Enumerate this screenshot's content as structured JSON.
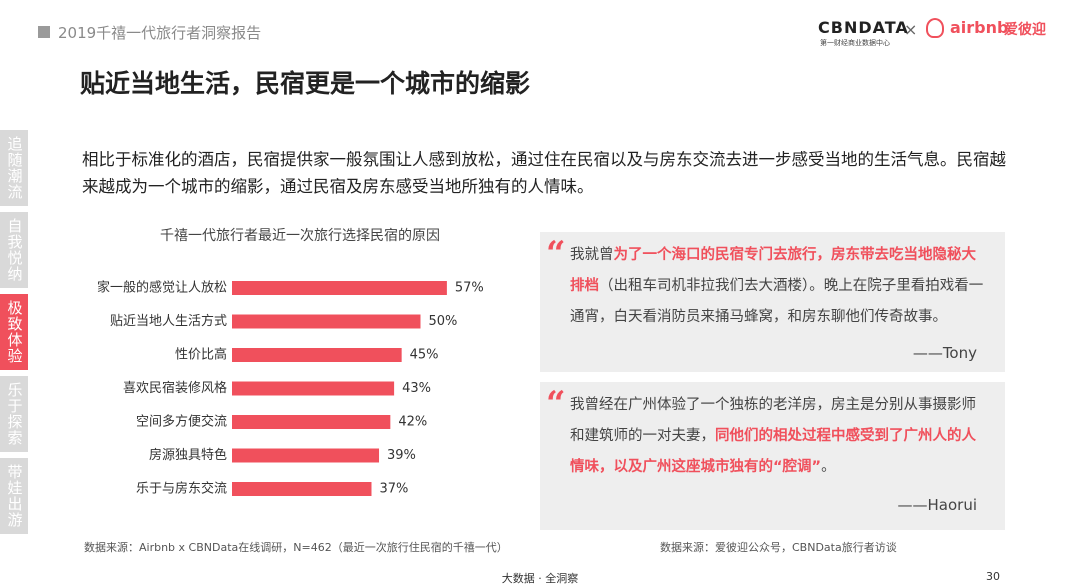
{
  "header": {
    "report_title": "2019千禧一代旅行者洞察报告",
    "logo_left": "CBNDATA",
    "logo_left_sub": "第一财经商业数据中心",
    "logo_cross": "×",
    "logo_right": "airbnb",
    "logo_right_cn": "爱彼迎"
  },
  "title": "贴近当地生活，民宿更是一个城市的缩影",
  "intro": "相比于标准化的酒店，民宿提供家一般氛围让人感到放松，通过住在民宿以及与房东交流去进一步感受当地的生活气息。民宿越来越成为一个城市的缩影，通过民宿及房东感受当地所独有的人情味。",
  "side_tabs": [
    {
      "label": "追随潮流",
      "active": false
    },
    {
      "label": "自我悦纳",
      "active": false
    },
    {
      "label": "极致体验",
      "active": true
    },
    {
      "label": "乐于探索",
      "active": false
    },
    {
      "label": "带娃出游",
      "active": false
    }
  ],
  "chart_data": {
    "type": "bar",
    "orientation": "horizontal",
    "title": "千禧一代旅行者最近一次旅行选择民宿的原因",
    "categories": [
      "家一般的感觉让人放松",
      "贴近当地人生活方式",
      "性价比高",
      "喜欢民宿装修风格",
      "空间多方便交流",
      "房源独具特色",
      "乐于与房东交流"
    ],
    "values": [
      57,
      50,
      45,
      43,
      42,
      39,
      37
    ],
    "value_labels": [
      "57%",
      "50%",
      "45%",
      "43%",
      "42%",
      "39%",
      "37%"
    ],
    "color": "#f0505c"
  },
  "quotes": [
    {
      "segments": [
        {
          "text": "我就曾",
          "highlight": false
        },
        {
          "text": "为了一个海口的民宿专门去旅行，房东带去吃当地隐秘大排档",
          "highlight": true
        },
        {
          "text": "（出租车司机非拉我们去大酒楼）。晚上在院子里看拍戏看一通宵，白天看消防员来捅马蜂窝，和房东聊他们传奇故事。",
          "highlight": false
        }
      ],
      "author": "——Tony"
    },
    {
      "segments": [
        {
          "text": "我曾经在广州体验了一个独栋的老洋房，房主是分别从事摄影师和建筑师的一对夫妻，",
          "highlight": false
        },
        {
          "text": "同他们的相处过程中感受到了广州人的人情味，以及广州这座城市独有的“腔调”",
          "highlight": true
        },
        {
          "text": "。",
          "highlight": false
        }
      ],
      "author": "——Haorui"
    }
  ],
  "quote_mark": "“",
  "sources": {
    "left": "数据来源：Airbnb x CBNData在线调研，N=462（最近一次旅行住民宿的千禧一代）",
    "right": "数据来源：爱彼迎公众号，CBNData旅行者访谈"
  },
  "footer": {
    "center": "大数据 · 全洞察",
    "page": "30"
  }
}
